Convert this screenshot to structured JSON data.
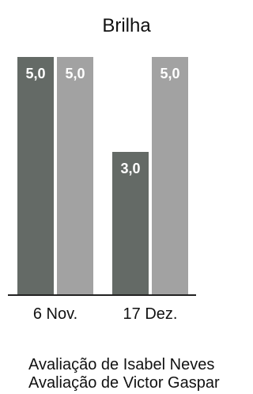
{
  "chart_data": {
    "type": "bar",
    "title": "Brilha",
    "categories": [
      "6 Nov.",
      "17 Dez."
    ],
    "series": [
      {
        "name": "Avaliação de Isabel Neves",
        "values": [
          5.0,
          3.0
        ],
        "labels": [
          "5,0",
          "3,0"
        ],
        "color": "#646a66"
      },
      {
        "name": "Avaliação de Victor Gaspar",
        "values": [
          5.0,
          5.0
        ],
        "labels": [
          "5,0",
          "5,0"
        ],
        "color": "#a2a2a2"
      }
    ],
    "ylim": [
      0,
      5
    ],
    "grid": false,
    "legend_position": "bottom-left"
  }
}
